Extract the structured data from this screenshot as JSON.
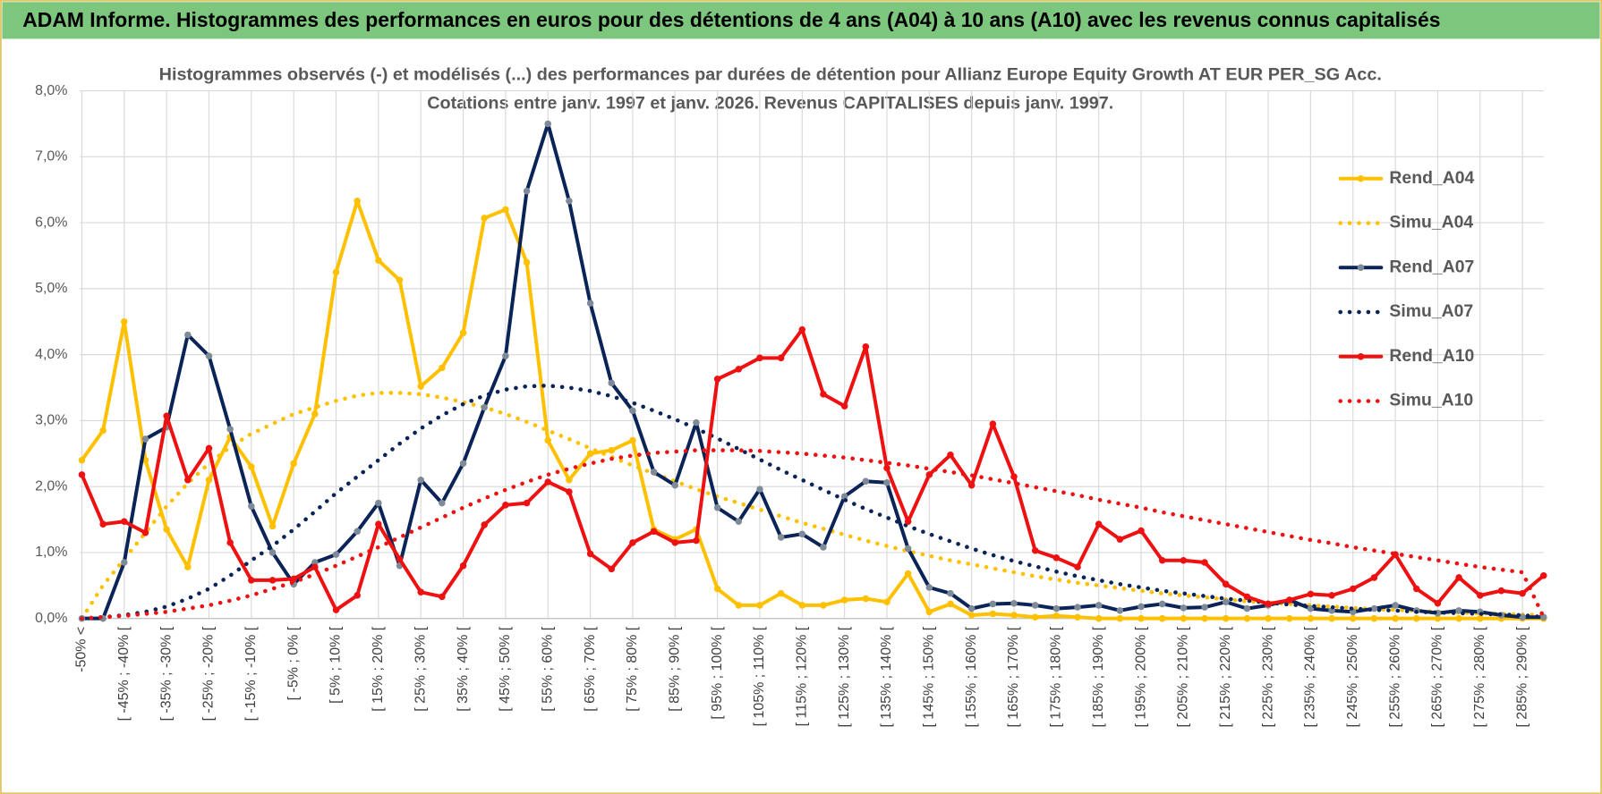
{
  "header": {
    "title": "ADAM Informe. Histogrammes des performances en euros pour des détentions de 4 ans (A04) à 10 ans (A10) avec les revenus connus capitalisés"
  },
  "chart_data": {
    "type": "line",
    "title": "Histogrammes observés (-) et modélisés (...) des performances par durées de détention pour Allianz Europe Equity Growth AT EUR PER_SG Acc.",
    "subtitle": "Cotations entre janv. 1997 et janv. 2026. Revenus CAPITALISES depuis janv. 1997.",
    "categories": [
      "-50% <",
      null,
      "[ -45% ; -40% [",
      null,
      "[ -35% ; -30% [",
      null,
      "[ -25% ; -20% [",
      null,
      "[ -15% ; -10% [",
      null,
      "[ -5% ; 0% [",
      null,
      "[ 5% ; 10% [",
      null,
      "[ 15% ; 20% [",
      null,
      "[ 25% ; 30% [",
      null,
      "[ 35% ; 40% [",
      null,
      "[ 45% ; 50% [",
      null,
      "[ 55% ; 60% [",
      null,
      "[ 65% ; 70% [",
      null,
      "[ 75% ; 80% [",
      null,
      "[ 85% ; 90% [",
      null,
      "[ 95% ; 100% [",
      null,
      "[ 105% ; 110% [",
      null,
      "[ 115% ; 120% [",
      null,
      "[ 125% ; 130% [",
      null,
      "[ 135% ; 140% [",
      null,
      "[ 145% ; 150% [",
      null,
      "[ 155% ; 160% [",
      null,
      "[ 165% ; 170% [",
      null,
      "[ 175% ; 180% [",
      null,
      "[ 185% ; 190% [",
      null,
      "[ 195% ; 200% [",
      null,
      "[ 205% ; 210% [",
      null,
      "[ 215% ; 220% [",
      null,
      "[ 225% ; 230% [",
      null,
      "[ 235% ; 240% [",
      null,
      "[ 245% ; 250% [",
      null,
      "[ 255% ; 260% [",
      null,
      "[ 265% ; 270% [",
      null,
      "[ 275% ; 280% [",
      null,
      "[ 285% ; 290% [",
      null
    ],
    "series": [
      {
        "name": "Rend_A04",
        "color": "#FFC000",
        "style": "solid",
        "markers": true,
        "values": [
          2.4,
          2.85,
          4.5,
          2.4,
          1.35,
          0.78,
          2.1,
          2.75,
          2.3,
          1.4,
          2.35,
          3.1,
          5.25,
          6.33,
          5.43,
          5.13,
          3.52,
          3.8,
          4.33,
          6.07,
          6.2,
          5.4,
          2.7,
          2.1,
          2.5,
          2.55,
          2.7,
          1.35,
          1.2,
          1.35,
          0.45,
          0.2,
          0.2,
          0.38,
          0.2,
          0.2,
          0.28,
          0.3,
          0.25,
          0.68,
          0.1,
          0.22,
          0.05,
          0.07,
          0.05,
          0.02,
          0.04,
          0.02,
          0,
          0,
          0,
          0,
          0,
          0,
          0,
          0,
          0,
          0,
          0,
          0,
          0,
          0,
          0,
          0,
          0,
          0,
          0,
          0,
          0,
          0
        ]
      },
      {
        "name": "Simu_A04",
        "color": "#FFC000",
        "style": "dotted",
        "markers": false,
        "values": [
          0,
          0.5,
          0.9,
          1.3,
          1.7,
          2.05,
          2.35,
          2.6,
          2.8,
          2.95,
          3.1,
          3.2,
          3.3,
          3.38,
          3.42,
          3.42,
          3.4,
          3.35,
          3.28,
          3.2,
          3.1,
          2.98,
          2.85,
          2.72,
          2.58,
          2.45,
          2.32,
          2.2,
          2.08,
          1.96,
          1.85,
          1.75,
          1.65,
          1.55,
          1.45,
          1.36,
          1.27,
          1.18,
          1.1,
          1.02,
          0.95,
          0.88,
          0.82,
          0.76,
          0.7,
          0.64,
          0.59,
          0.54,
          0.5,
          0.46,
          0.42,
          0.38,
          0.35,
          0.32,
          0.29,
          0.26,
          0.24,
          0.22,
          0.2,
          0.18,
          0.16,
          0.14,
          0.13,
          0.12,
          0.1,
          0.09,
          0.08,
          0.07,
          0.06,
          0.05
        ]
      },
      {
        "name": "Rend_A07",
        "color": "#0B2458",
        "marker_color": "#7F8A99",
        "style": "solid",
        "markers": true,
        "values": [
          0,
          0,
          0.85,
          2.72,
          2.9,
          4.3,
          3.98,
          2.87,
          1.7,
          1.0,
          0.52,
          0.85,
          0.97,
          1.32,
          1.75,
          0.8,
          2.1,
          1.75,
          2.35,
          3.2,
          3.98,
          6.48,
          7.5,
          6.33,
          4.78,
          3.57,
          3.15,
          2.22,
          2.02,
          2.97,
          1.68,
          1.47,
          1.96,
          1.23,
          1.28,
          1.08,
          1.85,
          2.08,
          2.06,
          1.06,
          0.47,
          0.38,
          0.15,
          0.22,
          0.23,
          0.2,
          0.15,
          0.17,
          0.2,
          0.12,
          0.18,
          0.22,
          0.16,
          0.17,
          0.25,
          0.15,
          0.2,
          0.28,
          0.15,
          0.12,
          0.1,
          0.15,
          0.2,
          0.12,
          0.08,
          0.12,
          0.1,
          0.05,
          0.02,
          0.02
        ]
      },
      {
        "name": "Simu_A07",
        "color": "#0B2458",
        "style": "dotted",
        "markers": false,
        "values": [
          0,
          0.02,
          0.05,
          0.1,
          0.18,
          0.3,
          0.45,
          0.65,
          0.88,
          1.1,
          1.35,
          1.62,
          1.9,
          2.15,
          2.4,
          2.65,
          2.88,
          3.08,
          3.25,
          3.38,
          3.47,
          3.52,
          3.53,
          3.5,
          3.45,
          3.37,
          3.27,
          3.15,
          3.02,
          2.88,
          2.73,
          2.57,
          2.41,
          2.25,
          2.1,
          1.95,
          1.8,
          1.66,
          1.53,
          1.4,
          1.28,
          1.17,
          1.06,
          0.96,
          0.87,
          0.79,
          0.71,
          0.64,
          0.58,
          0.52,
          0.47,
          0.42,
          0.38,
          0.34,
          0.3,
          0.27,
          0.24,
          0.21,
          0.19,
          0.17,
          0.15,
          0.13,
          0.12,
          0.1,
          0.09,
          0.08,
          0.07,
          0.06,
          0.05,
          0.02
        ]
      },
      {
        "name": "Rend_A10",
        "color": "#EE1111",
        "style": "solid",
        "markers": true,
        "values": [
          2.18,
          1.43,
          1.47,
          1.3,
          3.07,
          2.1,
          2.58,
          1.15,
          0.58,
          0.58,
          0.6,
          0.78,
          0.13,
          0.35,
          1.43,
          0.9,
          0.4,
          0.33,
          0.8,
          1.42,
          1.72,
          1.75,
          2.07,
          1.92,
          0.98,
          0.75,
          1.15,
          1.32,
          1.15,
          1.18,
          3.63,
          3.78,
          3.95,
          3.95,
          4.38,
          3.4,
          3.22,
          4.12,
          2.28,
          1.47,
          2.18,
          2.48,
          2.02,
          2.95,
          2.15,
          1.03,
          0.92,
          0.78,
          1.43,
          1.2,
          1.33,
          0.88,
          0.88,
          0.85,
          0.52,
          0.33,
          0.22,
          0.28,
          0.37,
          0.35,
          0.45,
          0.62,
          0.97,
          0.45,
          0.23,
          0.62,
          0.35,
          0.42,
          0.38,
          0.65
        ]
      },
      {
        "name": "Simu_A10",
        "color": "#EE1111",
        "style": "dotted",
        "markers": false,
        "values": [
          0,
          0.02,
          0.04,
          0.07,
          0.1,
          0.15,
          0.2,
          0.27,
          0.35,
          0.45,
          0.55,
          0.67,
          0.8,
          0.94,
          1.08,
          1.23,
          1.38,
          1.53,
          1.68,
          1.82,
          1.95,
          2.07,
          2.18,
          2.27,
          2.35,
          2.42,
          2.47,
          2.51,
          2.53,
          2.55,
          2.55,
          2.55,
          2.54,
          2.52,
          2.5,
          2.47,
          2.44,
          2.4,
          2.36,
          2.32,
          2.27,
          2.22,
          2.17,
          2.11,
          2.05,
          1.99,
          1.93,
          1.87,
          1.8,
          1.74,
          1.68,
          1.61,
          1.55,
          1.49,
          1.43,
          1.37,
          1.31,
          1.25,
          1.19,
          1.14,
          1.08,
          1.03,
          0.98,
          0.93,
          0.88,
          0.83,
          0.78,
          0.74,
          0.7,
          0.02
        ]
      }
    ],
    "ylim": [
      0,
      8
    ],
    "yticks": [
      {
        "value": 0,
        "label": "0,0%"
      },
      {
        "value": 1,
        "label": "1,0%"
      },
      {
        "value": 2,
        "label": "2,0%"
      },
      {
        "value": 3,
        "label": "3,0%"
      },
      {
        "value": 4,
        "label": "4,0%"
      },
      {
        "value": 5,
        "label": "5,0%"
      },
      {
        "value": 6,
        "label": "6,0%"
      },
      {
        "value": 7,
        "label": "7,0%"
      },
      {
        "value": 8,
        "label": "8,0%"
      }
    ],
    "grid": true,
    "legend": "right"
  }
}
